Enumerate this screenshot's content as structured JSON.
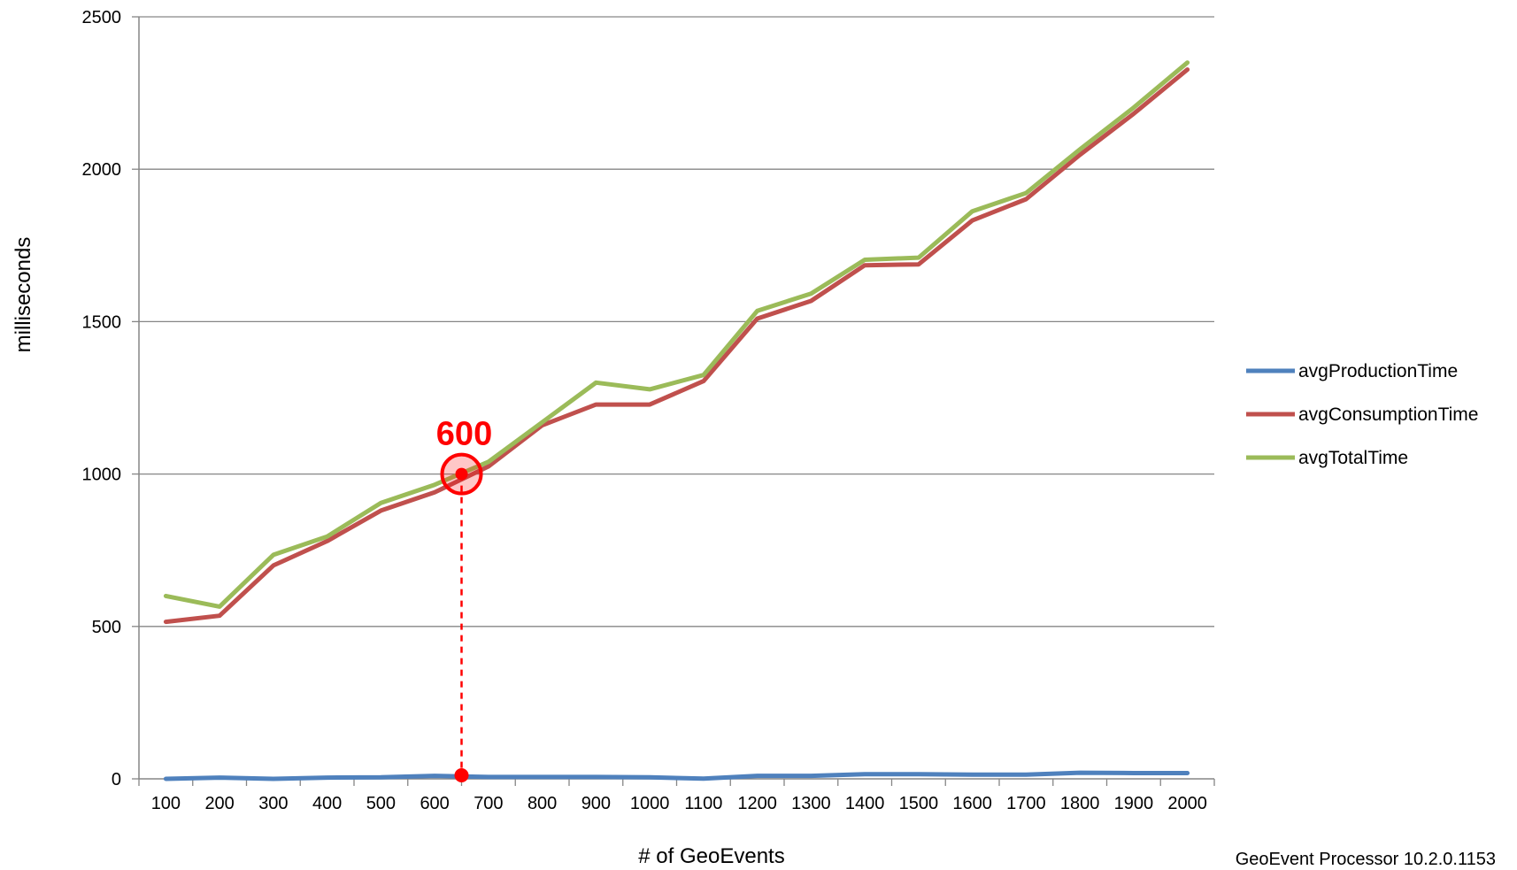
{
  "chart_data": {
    "type": "line",
    "title": "",
    "xlabel": "# of GeoEvents",
    "ylabel": "milliseconds",
    "categories": [
      "100",
      "200",
      "300",
      "400",
      "500",
      "600",
      "700",
      "800",
      "900",
      "1000",
      "1100",
      "1200",
      "1300",
      "1400",
      "1500",
      "1600",
      "1700",
      "1800",
      "1900",
      "2000"
    ],
    "ylim": [
      0,
      2500
    ],
    "yticks": [
      "0",
      "500",
      "1000",
      "1500",
      "2000",
      "2500"
    ],
    "grid": true,
    "legend_position": "right",
    "series": [
      {
        "name": "avgProductionTime",
        "color": "#4f81bd",
        "values": [
          0,
          4,
          0,
          4,
          5,
          10,
          6,
          6,
          6,
          5,
          1,
          10,
          10,
          15,
          15,
          14,
          14,
          20,
          19,
          19
        ]
      },
      {
        "name": "avgConsumptionTime",
        "color": "#c0504d",
        "values": [
          515,
          535,
          700,
          780,
          880,
          940,
          1025,
          1160,
          1228,
          1228,
          1305,
          1510,
          1568,
          1685,
          1688,
          1832,
          1902,
          2047,
          2182,
          2327
        ]
      },
      {
        "name": "avgTotalTime",
        "color": "#9bbb59",
        "values": [
          600,
          565,
          735,
          795,
          905,
          965,
          1040,
          1170,
          1300,
          1278,
          1325,
          1535,
          1592,
          1703,
          1710,
          1862,
          1922,
          2065,
          2202,
          2350
        ]
      }
    ],
    "annotation": {
      "label": "600",
      "x": 650,
      "y": 1000,
      "color": "#ff0000"
    }
  },
  "footer": {
    "text": "GeoEvent Processor 10.2.0.1153"
  }
}
